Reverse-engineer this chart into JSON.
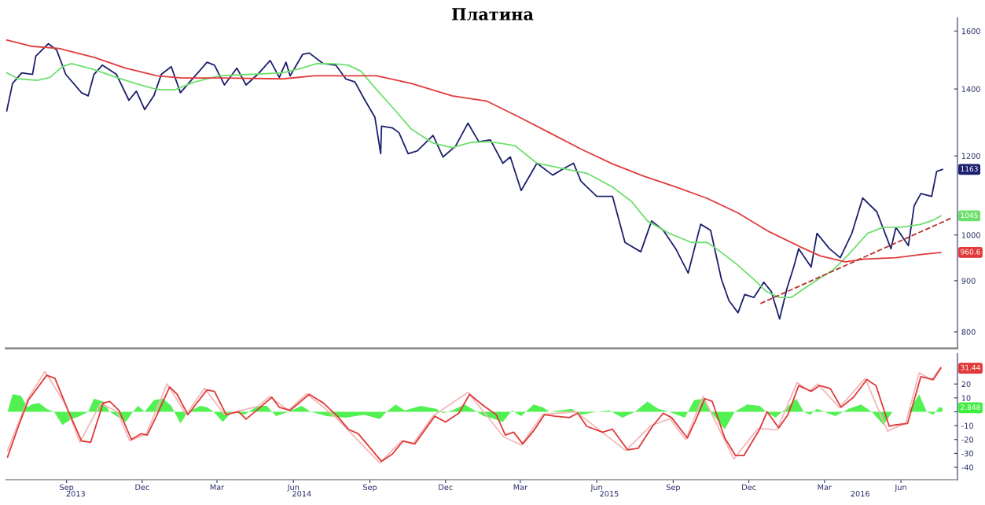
{
  "chart_data": [
    {
      "type": "line",
      "title": "Платина",
      "log": "y",
      "tick_labels": "y",
      "grid": false,
      "xlim": [
        "2013-07-04",
        "2016-08-22"
      ],
      "ylim": [
        770,
        1650
      ],
      "yticks": [
        800,
        900,
        1000,
        1200,
        1400,
        1600
      ],
      "series": [
        {
          "color": "#1c206e",
          "x": [
            "2013-07-05",
            "2013-07-12",
            "2013-07-23",
            "2013-08-05",
            "2013-08-09",
            "2013-08-24",
            "2013-09-03",
            "2013-09-14",
            "2013-10-03",
            "2013-10-11",
            "2013-10-18",
            "2013-10-28",
            "2013-11-14",
            "2013-11-29",
            "2013-12-08",
            "2013-12-18",
            "2013-12-29",
            "2014-01-07",
            "2014-01-19",
            "2014-01-30",
            "2014-02-12",
            "2014-03-03",
            "2014-03-12",
            "2014-03-24",
            "2014-04-08",
            "2014-04-19",
            "2014-05-03",
            "2014-05-18",
            "2014-05-29",
            "2014-06-06",
            "2014-06-11",
            "2014-06-26",
            "2014-07-04",
            "2014-07-21",
            "2014-08-05",
            "2014-08-17",
            "2014-08-28",
            "2014-09-08",
            "2014-09-21",
            "2014-09-28",
            "2014-09-29",
            "2014-10-12",
            "2014-10-20",
            "2014-10-31",
            "2014-11-11",
            "2014-11-30",
            "2014-12-12",
            "2014-12-27",
            "2015-01-11",
            "2015-01-24",
            "2015-02-07",
            "2015-02-22",
            "2015-03-03",
            "2015-03-16",
            "2015-04-04",
            "2015-04-23",
            "2015-05-05",
            "2015-05-18",
            "2015-05-27",
            "2015-06-15",
            "2015-07-04",
            "2015-07-19",
            "2015-08-07",
            "2015-08-20",
            "2015-09-03",
            "2015-09-18",
            "2015-10-03",
            "2015-10-18",
            "2015-10-30",
            "2015-11-12",
            "2015-11-21",
            "2015-12-02",
            "2015-12-10",
            "2015-12-21",
            "2016-01-02",
            "2016-01-11",
            "2016-01-21",
            "2016-01-30",
            "2016-02-07",
            "2016-02-13",
            "2016-02-28",
            "2016-03-06",
            "2016-03-21",
            "2016-04-03",
            "2016-04-17",
            "2016-04-30",
            "2016-05-17",
            "2016-06-03",
            "2016-06-09",
            "2016-06-24",
            "2016-07-01",
            "2016-07-09",
            "2016-07-22",
            "2016-07-28",
            "2016-08-04"
          ],
          "values": [
            1331,
            1418,
            1453,
            1448,
            1510,
            1554,
            1532,
            1448,
            1388,
            1378,
            1448,
            1479,
            1448,
            1364,
            1393,
            1335,
            1378,
            1448,
            1474,
            1388,
            1428,
            1489,
            1479,
            1413,
            1469,
            1413,
            1448,
            1495,
            1438,
            1489,
            1443,
            1516,
            1521,
            1484,
            1479,
            1433,
            1423,
            1369,
            1312,
            1206,
            1285,
            1280,
            1266,
            1206,
            1214,
            1258,
            1197,
            1227,
            1294,
            1240,
            1245,
            1180,
            1197,
            1108,
            1180,
            1148,
            1164,
            1180,
            1132,
            1093,
            1093,
            983,
            962,
            1033,
            1011,
            969,
            916,
            1025,
            1011,
            903,
            860,
            836,
            872,
            866,
            897,
            878,
            824,
            885,
            929,
            969,
            929,
            1004,
            969,
            949,
            1004,
            1089,
            1055,
            969,
            1018,
            976,
            1070,
            1100,
            1093,
            1158,
            1163
          ]
        },
        {
          "color": "#6ee06e",
          "x": [
            "2013-07-05",
            "2013-07-19",
            "2013-08-11",
            "2013-08-26",
            "2013-09-10",
            "2013-09-21",
            "2013-10-18",
            "2013-11-14",
            "2013-12-07",
            "2014-01-02",
            "2014-01-24",
            "2014-02-16",
            "2014-03-18",
            "2014-04-25",
            "2014-06-02",
            "2014-06-25",
            "2014-07-13",
            "2014-08-01",
            "2014-08-20",
            "2014-09-04",
            "2014-09-23",
            "2014-10-16",
            "2014-11-04",
            "2014-11-30",
            "2014-12-23",
            "2015-01-15",
            "2015-02-03",
            "2015-02-18",
            "2015-03-09",
            "2015-04-04",
            "2015-05-08",
            "2015-06-04",
            "2015-07-04",
            "2015-07-27",
            "2015-08-15",
            "2015-09-10",
            "2015-10-07",
            "2015-10-26",
            "2015-11-06",
            "2015-11-29",
            "2015-12-21",
            "2016-01-05",
            "2016-01-20",
            "2016-02-04",
            "2016-03-02",
            "2016-03-25",
            "2016-04-13",
            "2016-05-06",
            "2016-05-25",
            "2016-06-16",
            "2016-07-09",
            "2016-07-24",
            "2016-08-02"
          ],
          "values": [
            1453,
            1433,
            1428,
            1438,
            1474,
            1484,
            1464,
            1438,
            1418,
            1398,
            1398,
            1423,
            1443,
            1448,
            1453,
            1469,
            1484,
            1484,
            1479,
            1459,
            1398,
            1331,
            1276,
            1236,
            1223,
            1238,
            1240,
            1236,
            1228,
            1180,
            1164,
            1152,
            1117,
            1080,
            1033,
            1004,
            983,
            983,
            969,
            937,
            903,
            878,
            866,
            866,
            897,
            922,
            956,
            1004,
            1018,
            1018,
            1025,
            1035,
            1045
          ]
        },
        {
          "color": "#e23b3b",
          "x": [
            "2013-07-05",
            "2013-08-03",
            "2013-09-06",
            "2013-10-18",
            "2013-11-25",
            "2014-01-02",
            "2014-02-01",
            "2014-03-18",
            "2014-06-02",
            "2014-07-10",
            "2014-09-23",
            "2014-11-04",
            "2014-12-23",
            "2015-02-03",
            "2015-03-13",
            "2015-04-19",
            "2015-05-27",
            "2015-07-04",
            "2015-08-11",
            "2015-09-18",
            "2015-10-26",
            "2015-12-02",
            "2016-01-09",
            "2016-02-16",
            "2016-03-10",
            "2016-04-09",
            "2016-05-02",
            "2016-06-09",
            "2016-07-09",
            "2016-08-02"
          ],
          "values": [
            1567,
            1545,
            1537,
            1506,
            1469,
            1443,
            1436,
            1436,
            1433,
            1443,
            1443,
            1418,
            1378,
            1361,
            1313,
            1266,
            1219,
            1178,
            1145,
            1117,
            1088,
            1052,
            1007,
            972,
            953,
            940,
            946,
            949,
            956,
            960.6
          ]
        },
        {
          "color": "#b83232",
          "line_style": "dashed",
          "x": [
            "2015-12-29",
            "2016-08-15"
          ],
          "values": [
            854,
            1040
          ]
        }
      ],
      "annotations": [
        {
          "text": "1163",
          "x": "2016-08-04",
          "y": 1163
        },
        {
          "text": "1045",
          "x": "2016-08-02",
          "y": 1045
        },
        {
          "text": "960.6",
          "x": "2016-08-02",
          "y": 960.6
        }
      ]
    },
    {
      "type": "line",
      "grid": false,
      "xlim": [
        "2013-07-04",
        "2016-08-22"
      ],
      "ylim": [
        -49,
        42
      ],
      "yticks": [
        -40,
        -30,
        -20,
        -10,
        {
          "value": 0,
          "label": null
        },
        10,
        20
      ],
      "xticks": [
        {
          "value": "2013-09-15",
          "label": "Sep"
        },
        {
          "value": "2013-12-15",
          "label": "Dec"
        },
        {
          "value": "2014-03-15",
          "label": "Mar"
        },
        {
          "value": "2014-06-15",
          "label": "Jun"
        },
        {
          "value": "2014-09-15",
          "label": "Sep"
        },
        {
          "value": "2014-12-15",
          "label": "Dec"
        },
        {
          "value": "2015-03-15",
          "label": "Mar"
        },
        {
          "value": "2015-06-15",
          "label": "Jun"
        },
        {
          "value": "2015-09-15",
          "label": "Sep"
        },
        {
          "value": "2015-12-15",
          "label": "Dec"
        },
        {
          "value": "2016-03-15",
          "label": "Mar"
        },
        {
          "value": "2016-06-15",
          "label": "Jun"
        }
      ],
      "x2lim": [
        "2013-07-04",
        "2016-08-22"
      ],
      "x2ticks": [
        {
          "value": "2013-09-26",
          "label": "2013"
        },
        {
          "value": "2014-06-25",
          "label": "2014"
        },
        {
          "value": "2015-06-30",
          "label": "2015"
        },
        {
          "value": "2016-04-27",
          "label": "2016"
        }
      ],
      "series": [
        {
          "type": "area",
          "color": "#3fef3f",
          "x": [
            "2013-07-06",
            "2013-07-12",
            "2013-07-22",
            "2013-07-30",
            "2013-08-04",
            "2013-08-13",
            "2013-08-22",
            "2013-08-31",
            "2013-09-10",
            "2013-09-21",
            "2013-10-01",
            "2013-10-11",
            "2013-10-18",
            "2013-10-29",
            "2013-11-06",
            "2013-11-25",
            "2013-12-04",
            "2013-12-10",
            "2013-12-18",
            "2013-12-29",
            "2014-01-09",
            "2014-01-19",
            "2014-01-30",
            "2014-02-08",
            "2014-02-23",
            "2014-03-03",
            "2014-03-11",
            "2014-03-22",
            "2014-04-02",
            "2014-04-17",
            "2014-05-03",
            "2014-05-14",
            "2014-05-25",
            "2014-06-09",
            "2014-06-25",
            "2014-07-06",
            "2014-07-25",
            "2014-08-17",
            "2014-09-08",
            "2014-09-27",
            "2014-10-05",
            "2014-10-16",
            "2014-10-27",
            "2014-11-15",
            "2014-12-04",
            "2014-12-12",
            "2014-12-23",
            "2015-01-07",
            "2015-01-19",
            "2015-01-30",
            "2015-02-07",
            "2015-02-22",
            "2015-03-05",
            "2015-03-16",
            "2015-03-31",
            "2015-04-11",
            "2015-04-19",
            "2015-05-16",
            "2015-05-27",
            "2015-06-15",
            "2015-06-30",
            "2015-07-16",
            "2015-07-31",
            "2015-08-15",
            "2015-08-28",
            "2015-09-10",
            "2015-09-29",
            "2015-10-10",
            "2015-10-22",
            "2015-10-30",
            "2015-11-16",
            "2015-11-28",
            "2015-12-13",
            "2015-12-28",
            "2016-01-05",
            "2016-01-16",
            "2016-01-28",
            "2016-02-10",
            "2016-02-19",
            "2016-02-27",
            "2016-03-06",
            "2016-03-15",
            "2016-03-28",
            "2016-04-13",
            "2016-04-28",
            "2016-05-11",
            "2016-05-25",
            "2016-06-05",
            "2016-06-24",
            "2016-07-07",
            "2016-07-16",
            "2016-07-24",
            "2016-07-31",
            "2016-08-04"
          ],
          "values": [
            0,
            12.6,
            11.6,
            3.2,
            5.3,
            6.3,
            2.1,
            0,
            -9.5,
            -5.3,
            -3.2,
            0,
            9.5,
            7.4,
            0,
            -7.4,
            0,
            4.2,
            0,
            8.4,
            9.5,
            4.2,
            -8.4,
            0,
            4.2,
            3.2,
            0,
            -7.4,
            0,
            -2.1,
            4.2,
            4.2,
            -3.2,
            0,
            4.2,
            0,
            -3.2,
            -4.2,
            -2.1,
            -5.3,
            0,
            5.3,
            1,
            4.2,
            2.1,
            -1,
            1,
            5.3,
            1,
            -3.2,
            -4.2,
            -7.4,
            1,
            -3.2,
            5.3,
            3.2,
            0,
            2.1,
            -2.1,
            0,
            1,
            -4.2,
            0,
            7.4,
            2.1,
            0,
            -4.2,
            8.4,
            9.5,
            0,
            -12.6,
            0,
            5.3,
            4.2,
            0,
            -4.2,
            2.1,
            9.5,
            0,
            -2.1,
            2.1,
            0,
            -3.2,
            2.1,
            5.3,
            0,
            -9.5,
            0,
            0,
            12.6,
            0,
            -2.1,
            3.2,
            2.848
          ]
        },
        {
          "color": "#f3b9b9",
          "x": [
            "2013-07-06",
            "2013-07-31",
            "2013-08-20",
            "2013-09-14",
            "2013-10-01",
            "2013-10-26",
            "2013-11-15",
            "2013-11-30",
            "2013-12-20",
            "2014-01-14",
            "2014-02-06",
            "2014-02-28",
            "2014-03-24",
            "2014-05-04",
            "2014-05-17",
            "2014-06-09",
            "2014-07-01",
            "2014-08-05",
            "2014-09-27",
            "2014-10-23",
            "2014-11-06",
            "2014-11-30",
            "2015-01-11",
            "2015-02-23",
            "2015-03-16",
            "2015-04-11",
            "2015-05-21",
            "2015-07-20",
            "2015-08-19",
            "2015-09-11",
            "2015-09-30",
            "2015-10-21",
            "2015-11-27",
            "2015-12-26",
            "2016-01-18",
            "2016-02-11",
            "2016-02-26",
            "2016-03-07",
            "2016-04-02",
            "2016-05-03",
            "2016-05-30",
            "2016-06-21",
            "2016-07-07",
            "2016-07-22",
            "2016-08-02"
          ],
          "values": [
            -28,
            10,
            29,
            5,
            -22,
            6,
            0,
            -21,
            -16,
            20,
            -2,
            17,
            -2,
            4,
            11,
            1,
            13,
            -4,
            -37,
            -21,
            -23,
            -3,
            14,
            -18,
            -24,
            -2,
            0,
            -28,
            -10,
            -5,
            -20,
            11,
            -34,
            -12,
            -13,
            21,
            15,
            20,
            3,
            24,
            -14,
            -8,
            28,
            23,
            32
          ]
        },
        {
          "color": "#e03a3a",
          "x": [
            "2013-07-06",
            "2013-07-19",
            "2013-07-31",
            "2013-08-22",
            "2013-09-01",
            "2013-09-16",
            "2013-10-03",
            "2013-10-14",
            "2013-10-29",
            "2013-11-06",
            "2013-11-17",
            "2013-12-02",
            "2013-12-14",
            "2013-12-21",
            "2014-01-02",
            "2014-01-17",
            "2014-01-26",
            "2014-02-08",
            "2014-03-03",
            "2014-03-12",
            "2014-03-26",
            "2014-04-10",
            "2014-04-19",
            "2014-05-06",
            "2014-05-20",
            "2014-05-29",
            "2014-06-11",
            "2014-07-04",
            "2014-07-21",
            "2014-08-07",
            "2014-08-20",
            "2014-09-01",
            "2014-09-29",
            "2014-10-12",
            "2014-10-25",
            "2014-11-08",
            "2014-12-02",
            "2014-12-15",
            "2014-12-31",
            "2015-01-13",
            "2015-01-30",
            "2015-02-14",
            "2015-02-25",
            "2015-03-07",
            "2015-03-18",
            "2015-03-31",
            "2015-04-13",
            "2015-04-26",
            "2015-05-13",
            "2015-05-23",
            "2015-06-03",
            "2015-06-22",
            "2015-07-04",
            "2015-07-22",
            "2015-08-04",
            "2015-08-21",
            "2015-09-03",
            "2015-09-13",
            "2015-10-02",
            "2015-10-11",
            "2015-10-23",
            "2015-11-01",
            "2015-11-16",
            "2015-11-29",
            "2015-12-09",
            "2015-12-28",
            "2016-01-06",
            "2016-01-20",
            "2016-01-31",
            "2016-02-13",
            "2016-02-28",
            "2016-03-09",
            "2016-03-22",
            "2016-04-04",
            "2016-04-19",
            "2016-05-05",
            "2016-05-16",
            "2016-06-01",
            "2016-06-08",
            "2016-06-23",
            "2016-07-09",
            "2016-07-24",
            "2016-08-02"
          ],
          "values": [
            -32.6,
            -10.5,
            8.4,
            26.3,
            24.2,
            2.1,
            -21,
            -22,
            6.3,
            7.4,
            1,
            -20,
            -15.8,
            -16.8,
            -2.1,
            17.9,
            12.6,
            -2.1,
            15.8,
            14.7,
            -2.1,
            0,
            -5.3,
            3.2,
            10.5,
            3.2,
            1,
            12.6,
            6.3,
            -3.2,
            -12.6,
            -15.8,
            -35.8,
            -30.5,
            -21,
            -23.2,
            -3.2,
            -7.4,
            -1,
            12.6,
            4.2,
            -2.1,
            -16.8,
            -14.7,
            -23.2,
            -13.7,
            -2.1,
            -3.2,
            -4.2,
            -1,
            -10.5,
            -14.7,
            -12.6,
            -27.4,
            -26.3,
            -10.5,
            -1,
            -4.2,
            -18.9,
            -7.4,
            9.5,
            7.4,
            -18.9,
            -31.6,
            -31.6,
            -12.6,
            0,
            -11.6,
            -2.1,
            18.9,
            14.7,
            18.9,
            16.8,
            3.2,
            10.5,
            23.2,
            18.9,
            -10.5,
            -9.5,
            -8.4,
            25.3,
            23.2,
            31.44
          ]
        }
      ],
      "annotations": [
        {
          "text": "31.44",
          "x": "2016-08-02",
          "y": 31.44
        },
        {
          "text": "2.848",
          "x": "2016-08-04",
          "y": 2.848
        }
      ]
    }
  ]
}
